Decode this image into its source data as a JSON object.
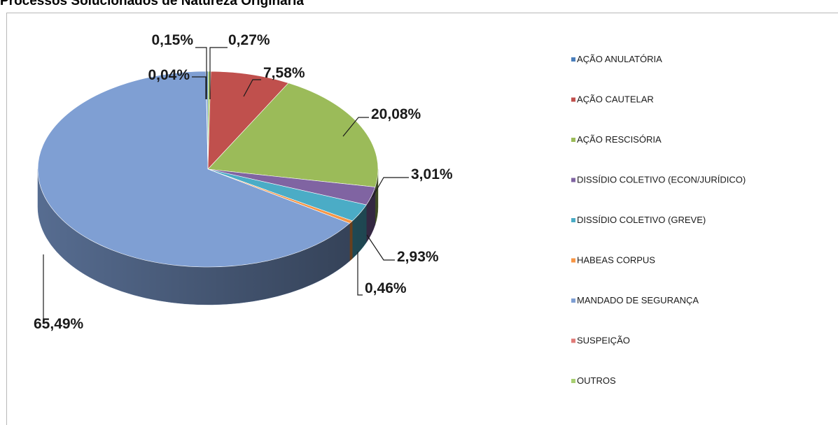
{
  "title": "Processos Solucionados de Natureza Originária",
  "chart_data": {
    "type": "pie",
    "categories": [
      "AÇÃO ANULATÓRIA",
      "AÇÃO CAUTELAR",
      "AÇÃO RESCISÓRIA",
      "DISSÍDIO COLETIVO (ECON/JURÍDICO)",
      "DISSÍDIO COLETIVO (GREVE)",
      "HABEAS CORPUS",
      "MANDADO DE SEGURANÇA",
      "SUSPEIÇÃO",
      "OUTROS"
    ],
    "values": [
      0.15,
      7.58,
      20.08,
      3.01,
      2.93,
      0.46,
      65.49,
      0.04,
      0.27
    ],
    "slice_order": [
      8,
      1,
      2,
      3,
      4,
      5,
      6,
      7,
      0
    ],
    "data_labels": [
      "0,15%",
      "7,58%",
      "20,08%",
      "3,01%",
      "2,93%",
      "0,46%",
      "65,49%",
      "0,04%",
      "0,27%"
    ],
    "colors": [
      "#4a7ebb",
      "#c0504d",
      "#9bbb59",
      "#8064a2",
      "#4bacc6",
      "#f79646",
      "#7f9fd3",
      "#e07b78",
      "#a8cf72"
    ],
    "legend_position": "right"
  }
}
